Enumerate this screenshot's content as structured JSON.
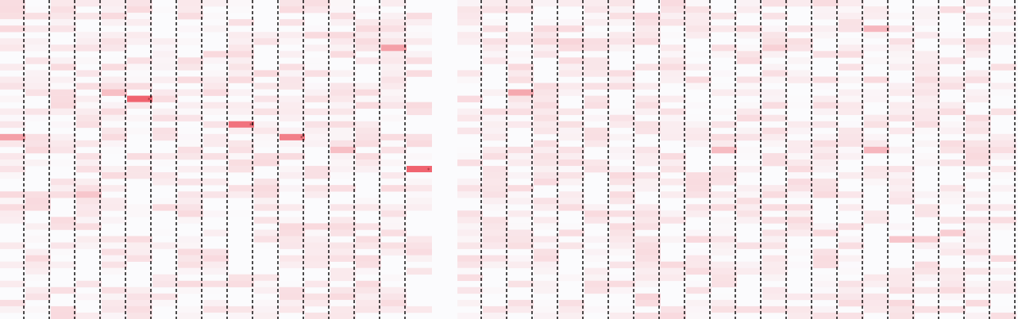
{
  "chart_data": {
    "type": "heatmap",
    "title": "",
    "xlabel": "",
    "ylabel": "",
    "n_columns": 40,
    "n_rows": 50,
    "value_range": [
      0,
      1
    ],
    "colors": {
      "background": "#fbfbfd",
      "high": "#f06470",
      "divider": "#000000",
      "marker_text": "#8a2a2a"
    },
    "column_dividers": "dashed-black",
    "blank_columns": [
      17
    ],
    "highlighted_cells": [
      {
        "col": 5,
        "row": 15,
        "value": 1.0,
        "marker": "*"
      },
      {
        "col": 9,
        "row": 19,
        "value": 0.9,
        "marker": "*"
      },
      {
        "col": 11,
        "row": 21,
        "value": 0.82,
        "marker": "*"
      },
      {
        "col": 16,
        "row": 26,
        "value": 1.0,
        "marker": "*"
      },
      {
        "col": 15,
        "row": 7,
        "value": 0.6
      },
      {
        "col": 20,
        "row": 14,
        "value": 0.55
      },
      {
        "col": 0,
        "row": 21,
        "value": 0.6
      },
      {
        "col": 13,
        "row": 23,
        "value": 0.4
      },
      {
        "col": 28,
        "row": 23,
        "value": 0.42
      },
      {
        "col": 34,
        "row": 23,
        "value": 0.45
      },
      {
        "col": 34,
        "row": 4,
        "value": 0.45
      },
      {
        "col": 4,
        "row": 14,
        "value": 0.4
      },
      {
        "col": 3,
        "row": 30,
        "value": 0.35
      },
      {
        "col": 35,
        "row": 37,
        "value": 0.35
      },
      {
        "col": 36,
        "row": 37,
        "value": 0.3
      },
      {
        "col": 37,
        "row": 36,
        "value": 0.3
      },
      {
        "col": 25,
        "row": 46,
        "value": 0.25
      },
      {
        "col": 22,
        "row": 6,
        "value": 0.25
      },
      {
        "col": 30,
        "row": 7,
        "value": 0.28
      },
      {
        "col": 8,
        "row": 8,
        "value": 0.22
      }
    ],
    "seed": 7,
    "background_max_value": 0.22,
    "background_density": 0.62
  }
}
